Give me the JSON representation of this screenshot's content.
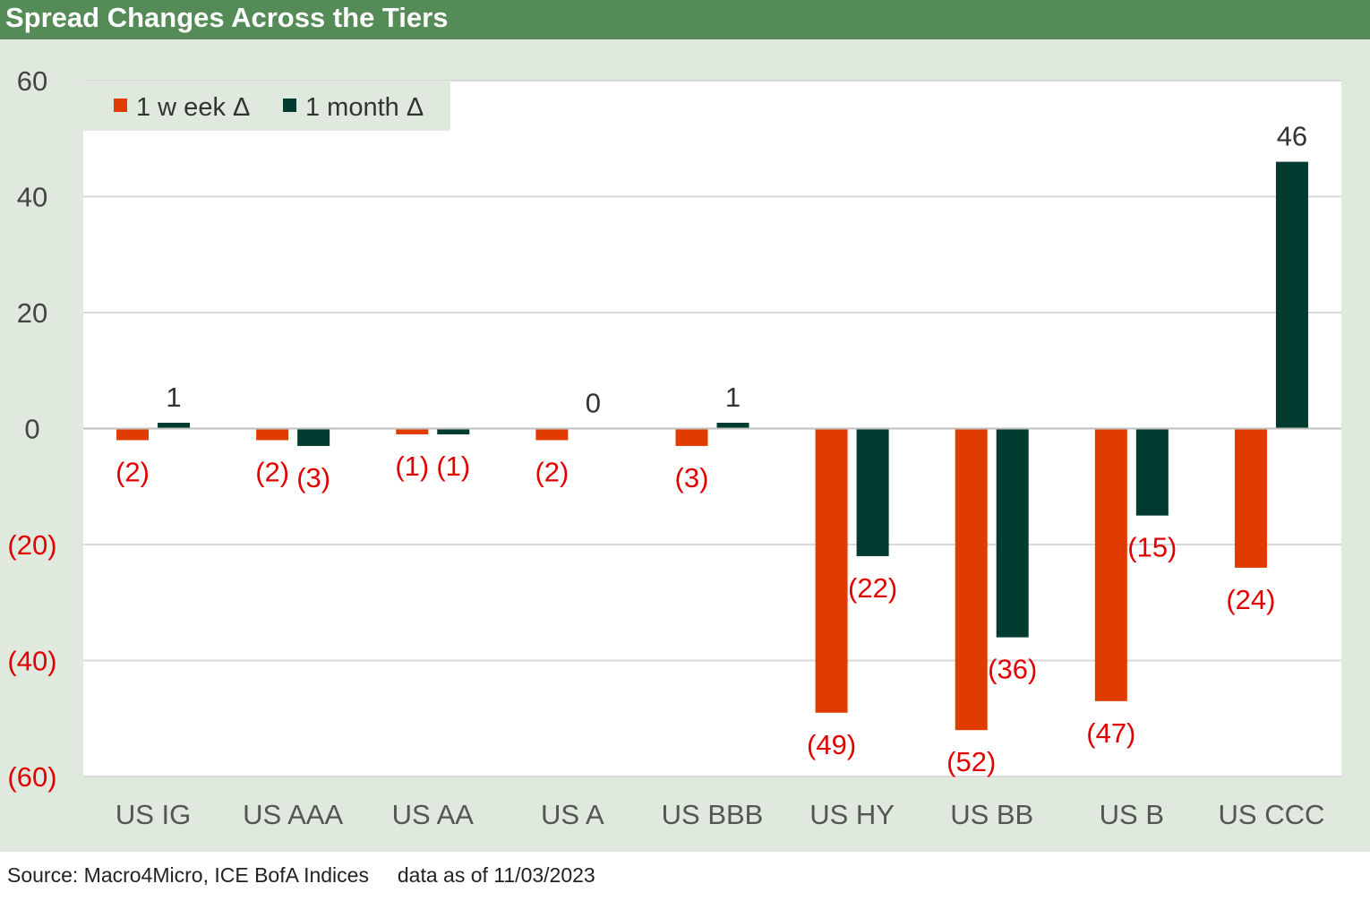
{
  "title": "Spread Changes Across the Tiers",
  "source": "Source: Macro4Micro, ICE BofA Indices",
  "data_note": "data as of 11/03/2023",
  "colors": {
    "week": "#e03c00",
    "month": "#003b2f",
    "negative_label": "#e00000",
    "positive_label": "#333333",
    "title_bar": "#558b57",
    "panel": "#dfe9dd"
  },
  "chart_data": {
    "type": "bar",
    "title": "",
    "xlabel": "",
    "ylabel": "",
    "ylim": [
      -60,
      60
    ],
    "yticks": [
      60,
      40,
      20,
      0,
      -20,
      -40,
      -60
    ],
    "ytick_labels": [
      "60",
      "40",
      "20",
      "0",
      "(20)",
      "(40)",
      "(60)"
    ],
    "grid": true,
    "legend_position": "top-left",
    "categories": [
      "US IG",
      "US AAA",
      "US AA",
      "US A",
      "US BBB",
      "US HY",
      "US BB",
      "US B",
      "US CCC"
    ],
    "series": [
      {
        "name": "1 w eek Δ",
        "values": [
          -2,
          -2,
          -1,
          -2,
          -3,
          -49,
          -52,
          -47,
          -24
        ],
        "labels": [
          "(2)",
          "(2)",
          "(1)",
          "(2)",
          "(3)",
          "(49)",
          "(52)",
          "(47)",
          "(24)"
        ]
      },
      {
        "name": "1 month Δ",
        "values": [
          1,
          -3,
          -1,
          0,
          1,
          -22,
          -36,
          -15,
          46
        ],
        "labels": [
          "1",
          "(3)",
          "(1)",
          "0",
          "1",
          "(22)",
          "(36)",
          "(15)",
          "46"
        ]
      }
    ]
  }
}
